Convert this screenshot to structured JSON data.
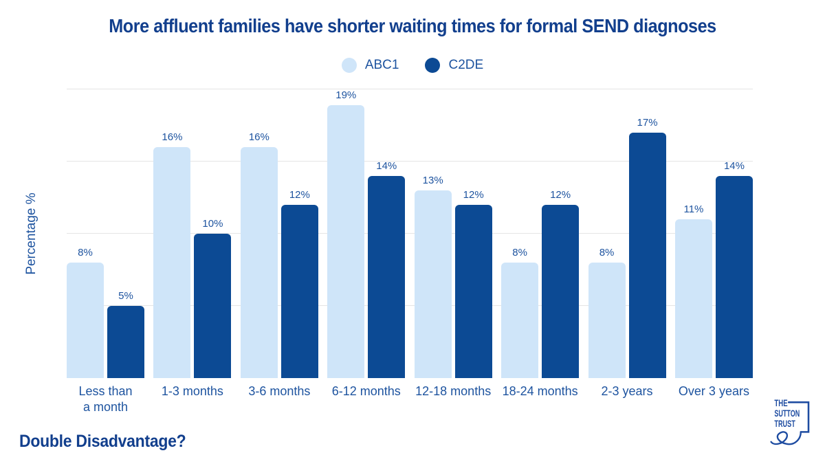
{
  "title": "More affluent families have shorter waiting times for formal SEND diagnoses",
  "legend": {
    "items": [
      {
        "label": "ABC1",
        "color": "#cfe5f9"
      },
      {
        "label": "C2DE",
        "color": "#0c4a94"
      }
    ]
  },
  "y_axis_label": "Percentage %",
  "footer_caption": "Double Disadvantage?",
  "logo": {
    "line1": "THE",
    "line2": "SUTTON",
    "line3": "TRUST"
  },
  "colors": {
    "abc1": "#cfe5f9",
    "c2de": "#0c4a94",
    "title_navy": "#123f8d",
    "axis_text": "#1d539f",
    "gridline": "#e5e5e5",
    "logo_blue": "#1e4ca1"
  },
  "chart_data": {
    "type": "bar",
    "categories": [
      "Less than\na month",
      "1-3 months",
      "3-6 months",
      "6-12 months",
      "12-18 months",
      "18-24 months",
      "2-3 years",
      "Over 3 years"
    ],
    "series": [
      {
        "name": "ABC1",
        "color": "#cfe5f9",
        "values": [
          8,
          16,
          16,
          19,
          13,
          8,
          8,
          11
        ]
      },
      {
        "name": "C2DE",
        "color": "#0c4a94",
        "values": [
          5,
          10,
          12,
          14,
          12,
          12,
          17,
          14
        ]
      }
    ],
    "title": "More affluent families have shorter waiting times for formal SEND diagnoses",
    "xlabel": "",
    "ylabel": "Percentage %",
    "ylim": [
      0,
      20
    ],
    "gridlines": [
      5,
      10,
      15,
      20
    ],
    "grid": true,
    "legend_position": "top",
    "value_label_format": "{v}%"
  }
}
